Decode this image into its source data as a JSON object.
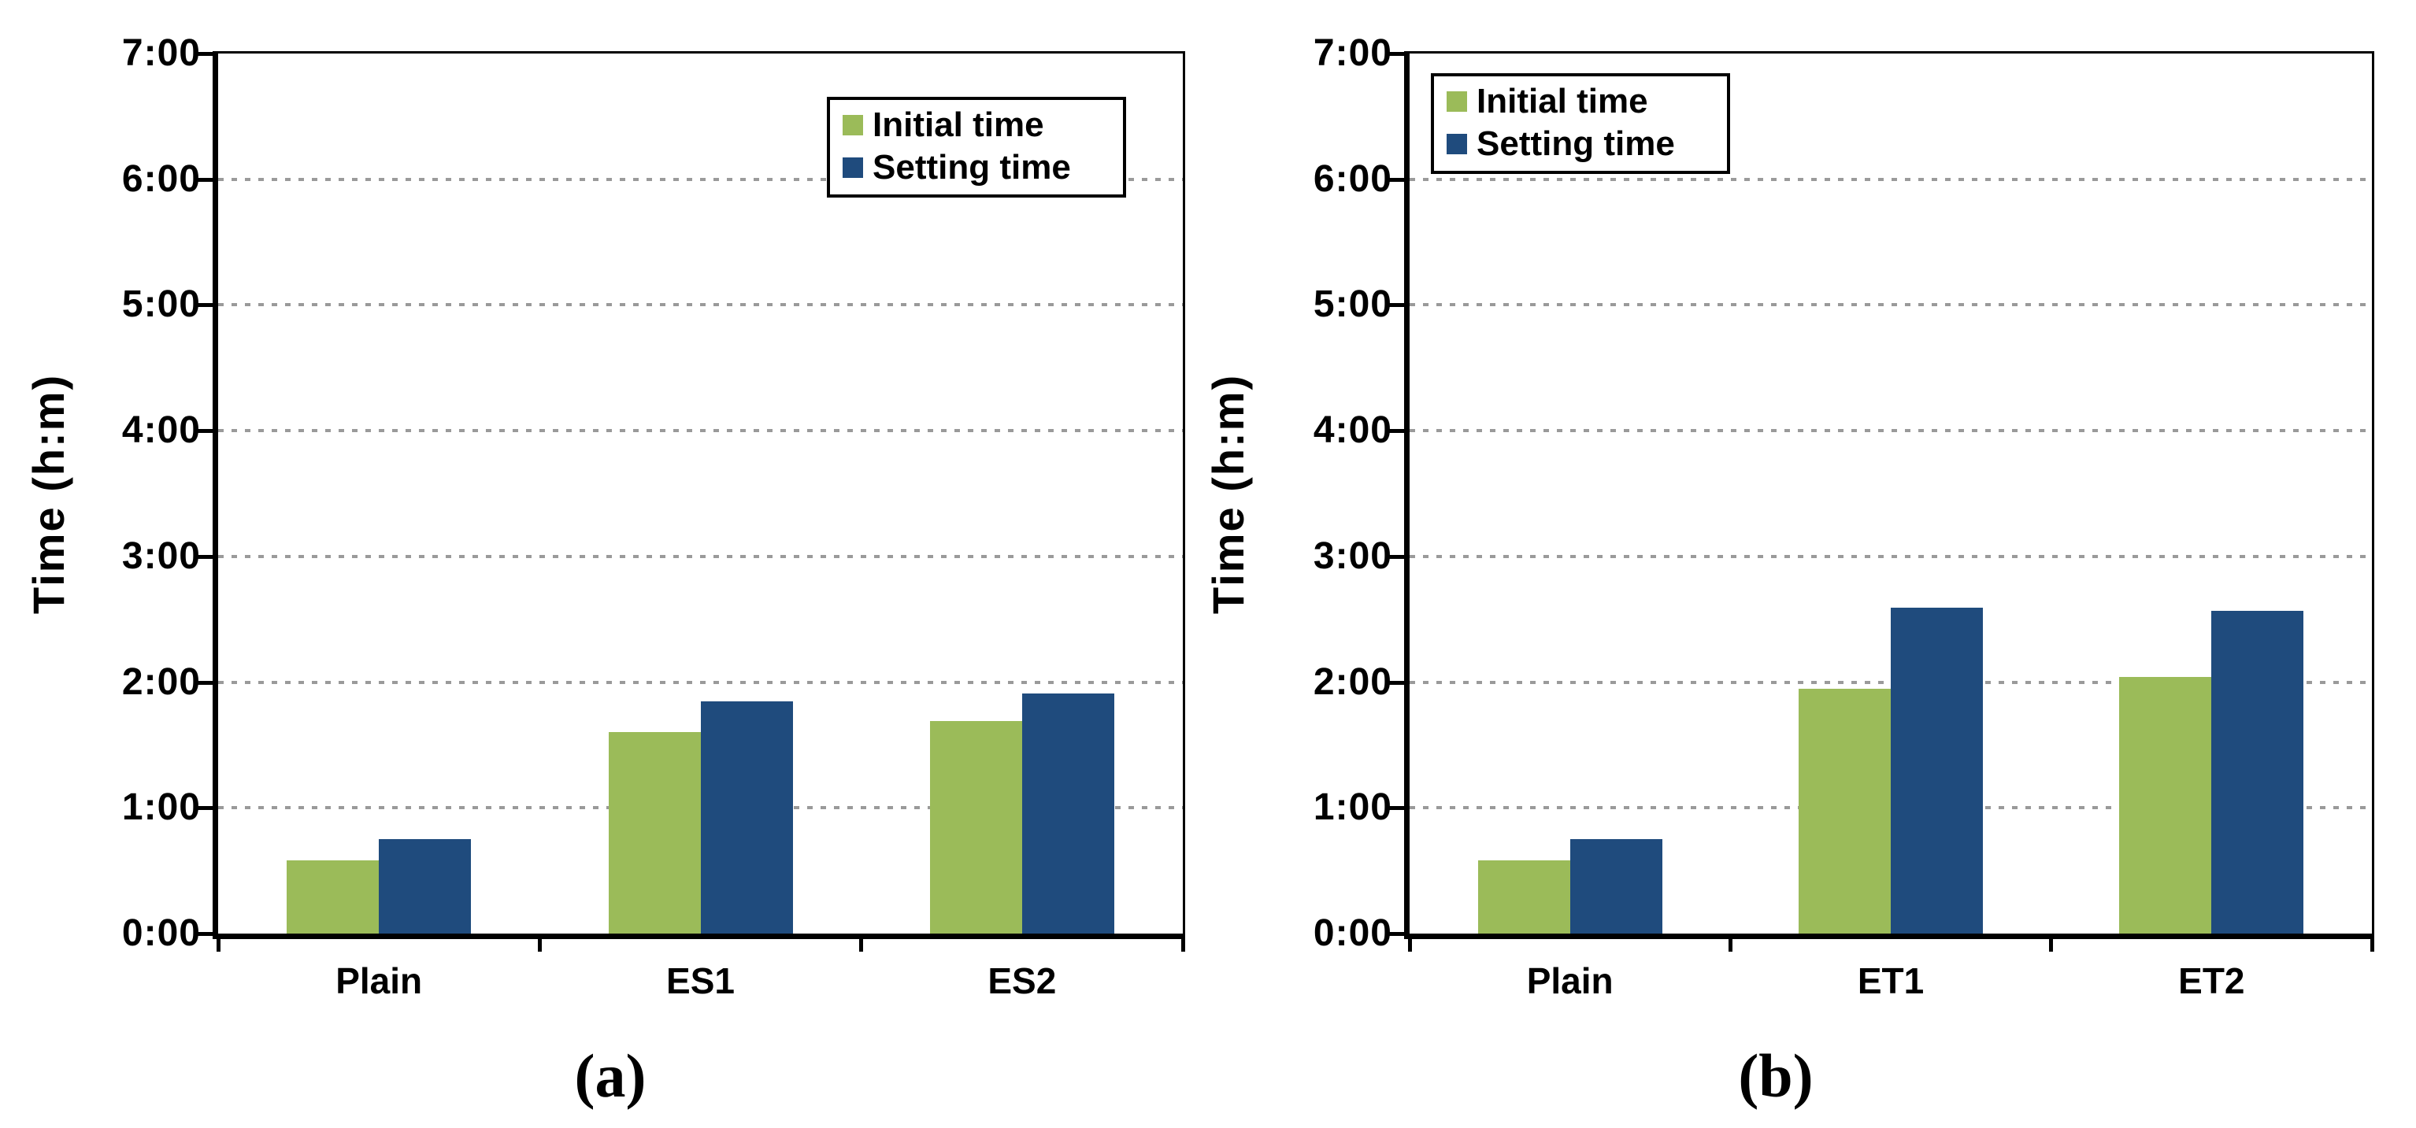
{
  "figure": {
    "caption_a": "(a)",
    "caption_b": "(b)"
  },
  "colors": {
    "initial": "#9BBB59",
    "setting": "#1F4B7D",
    "gridline": "#9A9A9A",
    "axis": "#000000",
    "background": "#FFFFFF"
  },
  "legend": {
    "items": [
      {
        "label": "Initial time",
        "color_key": "initial"
      },
      {
        "label": "Setting time",
        "color_key": "setting"
      }
    ]
  },
  "chart_data": [
    {
      "type": "bar",
      "panel": "a",
      "title": "",
      "xlabel": "",
      "ylabel": "Time (h:m)",
      "ylim": [
        0,
        7
      ],
      "ytick_labels": [
        "0:00",
        "1:00",
        "2:00",
        "3:00",
        "4:00",
        "5:00",
        "6:00",
        "7:00"
      ],
      "grid": "horizontal dotted, every hour",
      "legend_position": "top-right inside plot",
      "categories": [
        "Plain",
        "ES1",
        "ES2"
      ],
      "series": [
        {
          "name": "Initial time",
          "values_hours": [
            0.58,
            1.6,
            1.69
          ],
          "values_hm": [
            "0:35",
            "1:36",
            "1:41"
          ]
        },
        {
          "name": "Setting time",
          "values_hours": [
            0.75,
            1.85,
            1.91
          ],
          "values_hm": [
            "0:45",
            "1:51",
            "1:55"
          ]
        }
      ]
    },
    {
      "type": "bar",
      "panel": "b",
      "title": "",
      "xlabel": "",
      "ylabel": "Time (h:m)",
      "ylim": [
        0,
        7
      ],
      "ytick_labels": [
        "0:00",
        "1:00",
        "2:00",
        "3:00",
        "4:00",
        "5:00",
        "6:00",
        "7:00"
      ],
      "grid": "horizontal dotted, every hour",
      "legend_position": "top-left inside plot",
      "categories": [
        "Plain",
        "ET1",
        "ET2"
      ],
      "series": [
        {
          "name": "Initial time",
          "values_hours": [
            0.58,
            1.95,
            2.04
          ],
          "values_hm": [
            "0:35",
            "1:57",
            "2:02"
          ]
        },
        {
          "name": "Setting time",
          "values_hours": [
            0.75,
            2.59,
            2.57
          ],
          "values_hm": [
            "0:45",
            "2:35",
            "2:34"
          ]
        }
      ]
    }
  ]
}
